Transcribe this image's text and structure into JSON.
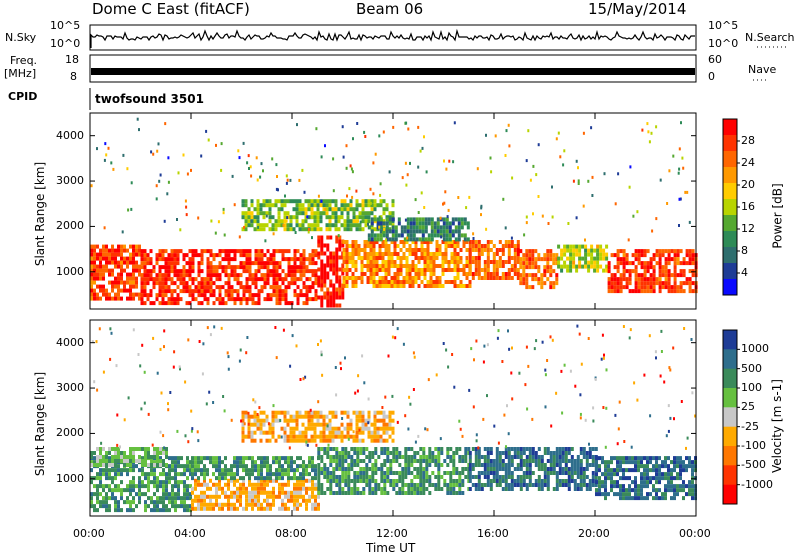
{
  "header": {
    "radar": "Dome C East (fitACF)",
    "beam": "Beam 06",
    "date": "15/May/2014"
  },
  "labels": {
    "nsky": "N.Sky",
    "nsearch": "N.Search",
    "freq_line1": "Freq.",
    "freq_line2": "[MHz]",
    "nave": "Nave",
    "cpid": "CPID",
    "cpid_value": "twofsound 3501"
  },
  "noise_axis": {
    "left_top": "10^5",
    "left_bottom": "10^0",
    "right_top": "10^5",
    "right_bottom": "10^0"
  },
  "freq_axis": {
    "left_top": "18",
    "left_bottom": "8",
    "right_top": "60",
    "right_bottom": "0"
  },
  "chart_data": [
    {
      "type": "heatmap",
      "name": "power",
      "xlabel": "Time UT",
      "ylabel": "Slant Range [km]",
      "xlim": [
        0,
        24
      ],
      "ylim": [
        180,
        4500
      ],
      "x_ticks": [
        "00:00",
        "04:00",
        "08:00",
        "12:00",
        "16:00",
        "20:00",
        "00:00"
      ],
      "y_ticks": [
        "1000",
        "2000",
        "3000",
        "4000"
      ],
      "colorbar_label": "Power [dB]",
      "colorbar_ticks": [
        "28",
        "24",
        "20",
        "16",
        "12",
        "8",
        "4"
      ],
      "colorbar_colors": [
        "#ff0000",
        "#ff3300",
        "#ff6600",
        "#ff9900",
        "#ffcc00",
        "#b8d400",
        "#55a830",
        "#2e8b57",
        "#2e6e6e",
        "#1e3c96",
        "#0a0aff"
      ],
      "bands": [
        {
          "t0": 0.0,
          "t1": 2.0,
          "r0": 400,
          "r1": 1600,
          "level": 26
        },
        {
          "t0": 2.0,
          "t1": 9.0,
          "r0": 300,
          "r1": 1500,
          "level": 27
        },
        {
          "t0": 9.0,
          "t1": 10.0,
          "r0": 300,
          "r1": 1800,
          "level": 28
        },
        {
          "t0": 10.0,
          "t1": 15.0,
          "r0": 700,
          "r1": 1700,
          "level": 22
        },
        {
          "t0": 15.0,
          "t1": 17.0,
          "r0": 900,
          "r1": 1700,
          "level": 24
        },
        {
          "t0": 17.0,
          "t1": 18.5,
          "r0": 700,
          "r1": 1500,
          "level": 24
        },
        {
          "t0": 18.5,
          "t1": 20.5,
          "r0": 1000,
          "r1": 1600,
          "level": 16
        },
        {
          "t0": 20.5,
          "t1": 24.0,
          "r0": 600,
          "r1": 1500,
          "level": 26
        },
        {
          "t0": 6.0,
          "t1": 12.0,
          "r0": 1900,
          "r1": 2600,
          "level": 14
        },
        {
          "t0": 11.0,
          "t1": 15.0,
          "r0": 1700,
          "r1": 2200,
          "level": 10
        }
      ]
    },
    {
      "type": "heatmap",
      "name": "velocity",
      "xlabel": "Time UT",
      "ylabel": "Slant Range [km]",
      "xlim": [
        0,
        24
      ],
      "ylim": [
        180,
        4500
      ],
      "x_ticks": [
        "00:00",
        "04:00",
        "08:00",
        "12:00",
        "16:00",
        "20:00",
        "00:00"
      ],
      "y_ticks": [
        "1000",
        "2000",
        "3000",
        "4000"
      ],
      "colorbar_label": "Velocity [m s-1]",
      "colorbar_ticks": [
        "1000",
        "500",
        "100",
        "25",
        "-25",
        "-100",
        "-500",
        "-1000"
      ],
      "colorbar_colors": [
        "#1e3c96",
        "#2e6e8c",
        "#3a8a5a",
        "#66c040",
        "#c8c8c8",
        "#ffaa00",
        "#ff7700",
        "#ff3300",
        "#ff0000"
      ],
      "bands": [
        {
          "t0": 0.0,
          "t1": 4.0,
          "r0": 300,
          "r1": 1500,
          "level": 100
        },
        {
          "t0": 4.0,
          "t1": 9.0,
          "r0": 300,
          "r1": 1000,
          "level": -100
        },
        {
          "t0": 4.0,
          "t1": 9.0,
          "r0": 1000,
          "r1": 1500,
          "level": 100
        },
        {
          "t0": 9.0,
          "t1": 15.0,
          "r0": 700,
          "r1": 1700,
          "level": 100
        },
        {
          "t0": 15.0,
          "t1": 20.0,
          "r0": 800,
          "r1": 1700,
          "level": 500
        },
        {
          "t0": 20.0,
          "t1": 24.0,
          "r0": 600,
          "r1": 1500,
          "level": 500
        },
        {
          "t0": 6.0,
          "t1": 12.0,
          "r0": 1800,
          "r1": 2500,
          "level": -100
        },
        {
          "t0": 0.0,
          "t1": 3.0,
          "r0": 1300,
          "r1": 1700,
          "level": 25
        }
      ]
    }
  ]
}
